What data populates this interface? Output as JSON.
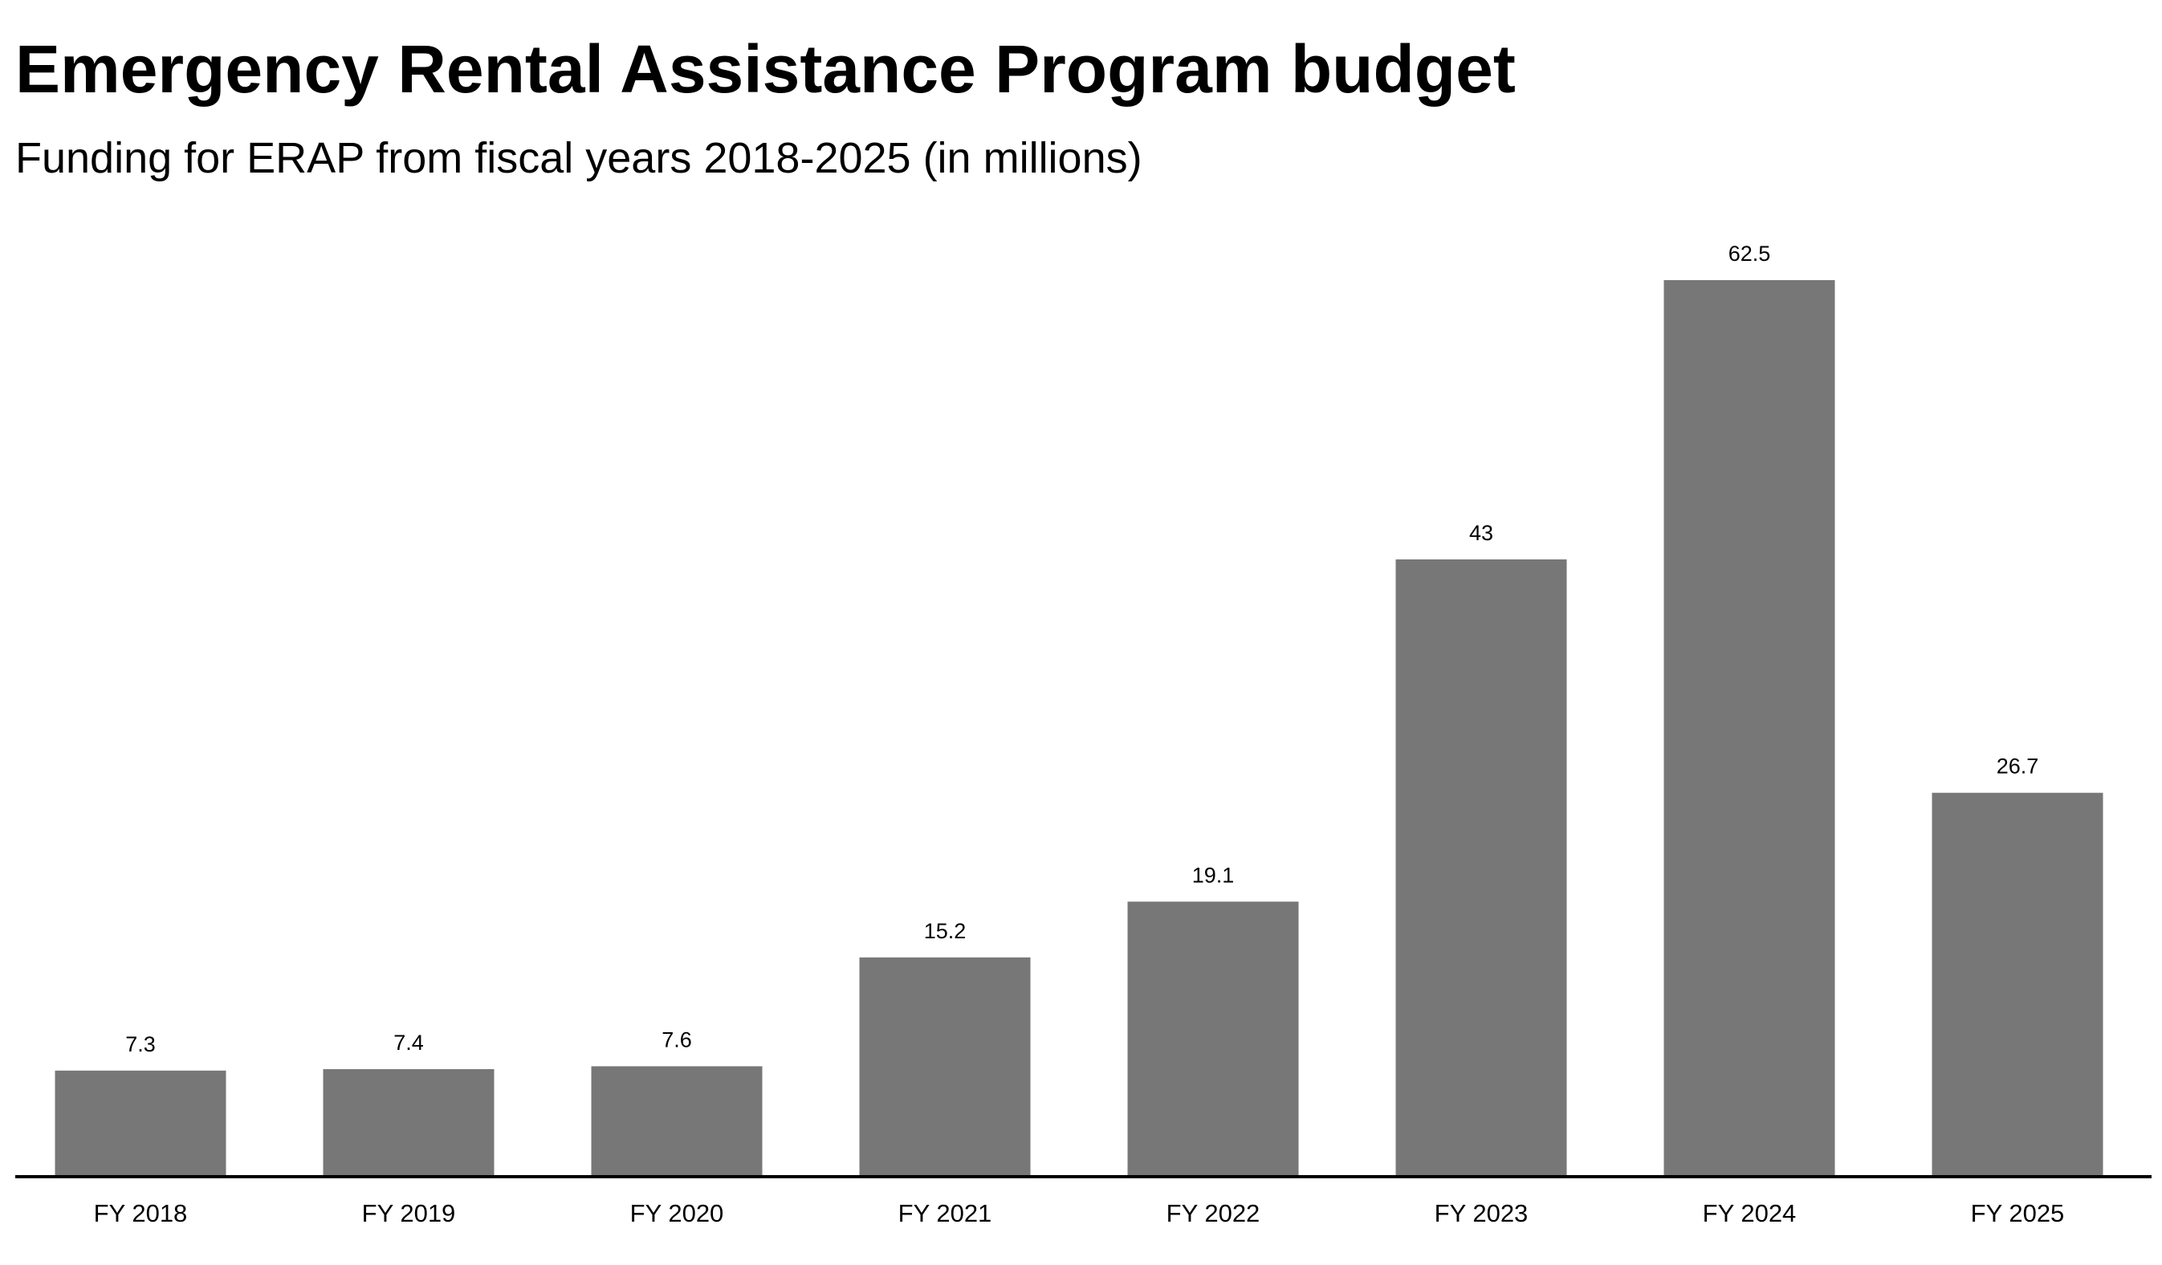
{
  "chart_data": {
    "type": "bar",
    "title": "Emergency Rental Assistance Program budget",
    "subtitle": "Funding for ERAP from fiscal years 2018-2025 (in millions)",
    "xlabel": "",
    "ylabel": "",
    "categories": [
      "FY 2018",
      "FY 2019",
      "FY 2020",
      "FY 2021",
      "FY 2022",
      "FY 2023",
      "FY 2024",
      "FY 2025"
    ],
    "values": [
      7.3,
      7.4,
      7.6,
      15.2,
      19.1,
      43,
      62.5,
      26.7
    ],
    "value_labels": [
      "7.3",
      "7.4",
      "7.6",
      "15.2",
      "19.1",
      "43",
      "62.5",
      "26.7"
    ],
    "ylim": [
      0,
      62.5
    ],
    "grid": false,
    "legend": "none",
    "colors": {
      "bar": "#777777",
      "axis": "#000000",
      "text": "#000000"
    }
  }
}
